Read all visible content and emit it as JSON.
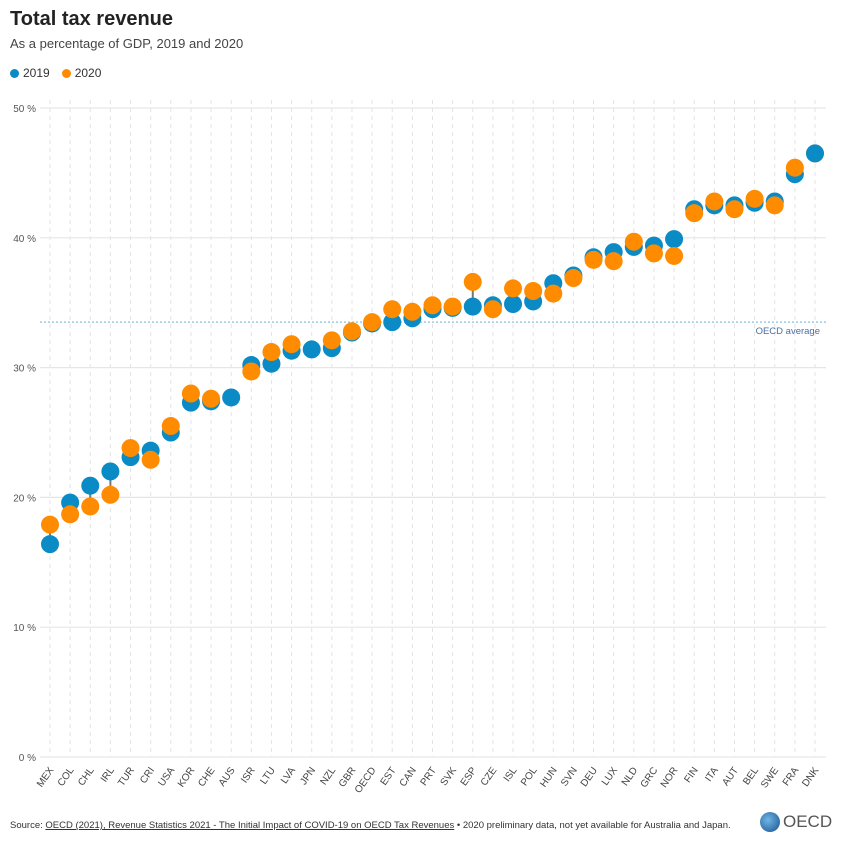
{
  "header": {
    "title": "Total tax revenue",
    "subtitle": "As a percentage of GDP, 2019 and 2020"
  },
  "colors": {
    "2019": "#0a8bc6",
    "2020": "#ff8b00",
    "connector": "#777777",
    "grid": "#e6e6e6",
    "oecd_line": "#9ccbe8"
  },
  "chart_data": {
    "type": "scatter",
    "title": "Total tax revenue",
    "subtitle": "As a percentage of GDP, 2019 and 2020",
    "ylim": [
      0,
      50
    ],
    "yticks": [
      0,
      10,
      20,
      30,
      40,
      50
    ],
    "ytick_labels": [
      "0 %",
      "10 %",
      "20 %",
      "30 %",
      "40 %",
      "50 %"
    ],
    "grid": true,
    "legend_position": "top-left",
    "categories": [
      "MEX",
      "COL",
      "CHL",
      "IRL",
      "TUR",
      "CRI",
      "USA",
      "KOR",
      "CHE",
      "AUS",
      "ISR",
      "LTU",
      "LVA",
      "JPN",
      "NZL",
      "GBR",
      "OECD",
      "EST",
      "CAN",
      "PRT",
      "SVK",
      "ESP",
      "CZE",
      "ISL",
      "POL",
      "HUN",
      "SVN",
      "DEU",
      "LUX",
      "NLD",
      "GRC",
      "NOR",
      "FIN",
      "ITA",
      "AUT",
      "BEL",
      "SWE",
      "FRA",
      "DNK"
    ],
    "series": [
      {
        "name": "2019",
        "values": [
          16.4,
          19.6,
          20.9,
          22.0,
          23.1,
          23.6,
          25.0,
          27.3,
          27.4,
          27.7,
          30.2,
          30.3,
          31.3,
          31.4,
          31.5,
          32.7,
          33.4,
          33.5,
          33.8,
          34.5,
          34.6,
          34.7,
          34.8,
          34.9,
          35.1,
          36.5,
          37.1,
          38.5,
          38.9,
          39.3,
          39.4,
          39.9,
          42.2,
          42.5,
          42.5,
          42.7,
          42.8,
          44.9,
          46.5
        ]
      },
      {
        "name": "2020",
        "values": [
          17.9,
          18.7,
          19.3,
          20.2,
          23.8,
          22.9,
          25.5,
          28.0,
          27.6,
          null,
          29.7,
          31.2,
          31.8,
          null,
          32.1,
          32.8,
          33.5,
          34.5,
          34.3,
          34.8,
          34.7,
          36.6,
          34.5,
          36.1,
          35.9,
          35.7,
          36.9,
          38.3,
          38.2,
          39.7,
          38.8,
          38.6,
          41.9,
          42.8,
          42.2,
          43.0,
          42.5,
          45.4,
          46.5
        ]
      }
    ],
    "reference_line": {
      "label": "OECD average",
      "value": 33.5
    }
  },
  "footer": {
    "source_prefix": "Source: ",
    "source_link": "OECD (2021), Revenue Statistics 2021 - The Initial Impact of COVID-19 on OECD Tax Revenues",
    "source_note": " • 2020 preliminary data, not yet available for Australia and Japan.",
    "logo_text": "OECD"
  }
}
